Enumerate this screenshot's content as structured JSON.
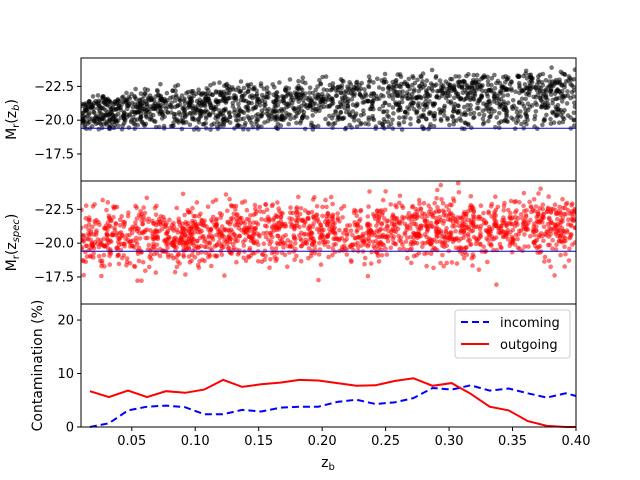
{
  "chart_data": [
    {
      "type": "scatter",
      "panel": "top",
      "ylabel": "M_r(z_b)",
      "ylabel_main": "M",
      "ylabel_sub1": "r",
      "ylabel_paren_open": "(z",
      "ylabel_sub2": "b",
      "ylabel_paren_close": ")",
      "ylim": [
        -15.5,
        -24.6
      ],
      "inverted_y": true,
      "yticks": [
        -22.5,
        -20.0,
        -17.5
      ],
      "ytick_labels": [
        "−22.5",
        "−20.0",
        "−17.5"
      ],
      "point_color": "#000000",
      "threshold_line": {
        "y": -19.4,
        "color": "#0000cc"
      },
      "description_points": "dense cloud of galaxies; upper envelope rises from about -21 at z_b=0.01 to about -23.5 at z_b=0.4; lower envelope near -19.4"
    },
    {
      "type": "scatter",
      "panel": "middle",
      "ylabel": "M_r(z_spec)",
      "ylabel_main": "M",
      "ylabel_sub1": "r",
      "ylabel_paren_open": "(z",
      "ylabel_sub2": "spec",
      "ylabel_paren_close": ")",
      "ylim": [
        -15.5,
        -24.6
      ],
      "inverted_y": true,
      "yticks": [
        -22.5,
        -20.0,
        -17.5
      ],
      "ytick_labels": [
        "−22.5",
        "−20.0",
        "−17.5"
      ],
      "point_color": "#ff0000",
      "threshold_line": {
        "y": -19.4,
        "color": "#0000cc"
      }
    },
    {
      "type": "line",
      "panel": "bottom",
      "xlabel": "z_b",
      "xlabel_main": "z",
      "xlabel_sub": "b",
      "ylabel": "Contamination (%)",
      "xlim": [
        0.01,
        0.4
      ],
      "ylim": [
        0,
        23
      ],
      "xticks": [
        0.05,
        0.1,
        0.15,
        0.2,
        0.25,
        0.3,
        0.35,
        0.4
      ],
      "xtick_labels": [
        "0.05",
        "0.10",
        "0.15",
        "0.20",
        "0.25",
        "0.30",
        "0.35",
        "0.40"
      ],
      "yticks": [
        0,
        10,
        20
      ],
      "ytick_labels": [
        "0",
        "10",
        "20"
      ],
      "legend_position": "top-right",
      "series": [
        {
          "name": "incoming",
          "color": "#0000ff",
          "style": "dashed",
          "x": [
            0.017,
            0.032,
            0.047,
            0.062,
            0.077,
            0.092,
            0.107,
            0.122,
            0.137,
            0.152,
            0.167,
            0.182,
            0.197,
            0.212,
            0.227,
            0.242,
            0.257,
            0.272,
            0.287,
            0.302,
            0.317,
            0.332,
            0.347,
            0.362,
            0.377,
            0.392,
            0.4
          ],
          "y": [
            0.0,
            0.7,
            3.1,
            3.8,
            4.0,
            3.7,
            2.4,
            2.4,
            3.2,
            2.9,
            3.6,
            3.8,
            3.8,
            4.7,
            5.1,
            4.3,
            4.6,
            5.4,
            7.3,
            7.0,
            7.8,
            6.8,
            7.2,
            6.3,
            5.5,
            6.3,
            5.8
          ]
        },
        {
          "name": "outgoing",
          "color": "#ff0000",
          "style": "solid",
          "x": [
            0.017,
            0.032,
            0.047,
            0.062,
            0.077,
            0.092,
            0.107,
            0.122,
            0.137,
            0.152,
            0.167,
            0.182,
            0.197,
            0.212,
            0.227,
            0.242,
            0.257,
            0.272,
            0.287,
            0.302,
            0.317,
            0.332,
            0.347,
            0.362,
            0.377,
            0.392,
            0.4
          ],
          "y": [
            6.7,
            5.6,
            6.8,
            5.6,
            6.7,
            6.4,
            7.0,
            8.8,
            7.5,
            8.0,
            8.3,
            8.8,
            8.7,
            8.2,
            7.7,
            7.8,
            8.6,
            9.1,
            7.7,
            8.2,
            6.2,
            3.8,
            3.1,
            1.1,
            0.2,
            0.0,
            0.0
          ]
        }
      ]
    }
  ]
}
